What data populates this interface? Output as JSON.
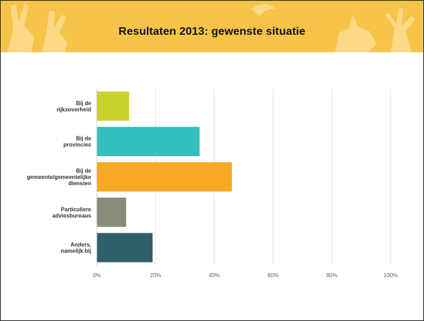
{
  "slide": {
    "title": "Resultaten 2013: gewenste situatie",
    "banner_color": "#f7c348"
  },
  "chart_data": {
    "type": "bar",
    "orientation": "horizontal",
    "categories": [
      [
        "Bij de",
        "rijksoverheid"
      ],
      [
        "Bij de",
        "provincies"
      ],
      [
        "Bij de",
        "gemeente/gemeentelijke",
        "diensten"
      ],
      [
        "Particuliere",
        "adviesbureaus"
      ],
      [
        "Anders,",
        "namelijk bij"
      ]
    ],
    "values": [
      11,
      35,
      46,
      10,
      19
    ],
    "colors": [
      "#c8d02d",
      "#35bfbf",
      "#f9a825",
      "#8b8b7a",
      "#2f5f6b"
    ],
    "xlim": [
      0,
      100
    ],
    "xticks": [
      "0%",
      "20%",
      "40%",
      "60%",
      "80%",
      "100%"
    ],
    "grid": true,
    "title": "",
    "xlabel": "",
    "ylabel": ""
  }
}
